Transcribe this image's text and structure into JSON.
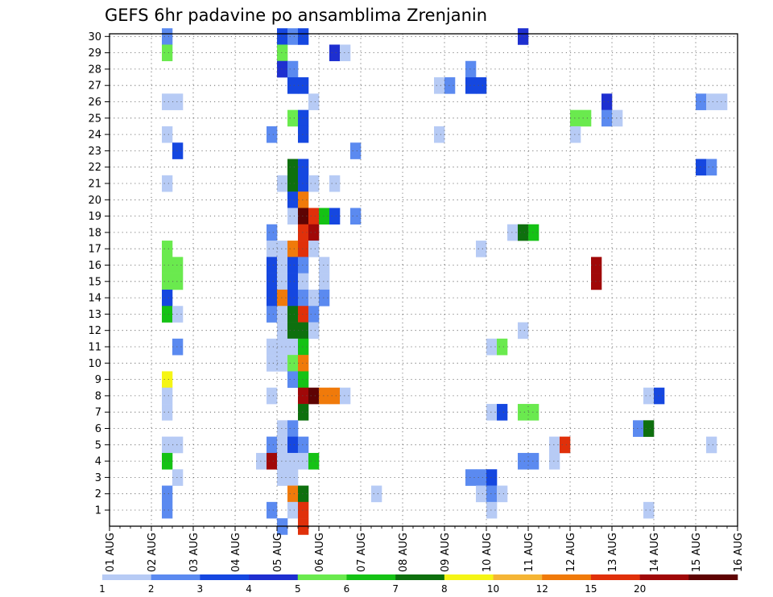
{
  "chart_data": {
    "type": "heatmap",
    "title": "GEFS 6hr padavine po ansamblima Zrenjanin",
    "xlabel": "",
    "ylabel": "",
    "x_ticks": [
      "01 AUG",
      "02 AUG",
      "03 AUG",
      "04 AUG",
      "05 AUG",
      "06 AUG",
      "07 AUG",
      "08 AUG",
      "09 AUG",
      "10 AUG",
      "11 AUG",
      "12 AUG",
      "13 AUG",
      "14 AUG",
      "15 AUG",
      "16 AUG"
    ],
    "y_ticks": [
      "1",
      "2",
      "3",
      "4",
      "5",
      "6",
      "7",
      "8",
      "9",
      "10",
      "11",
      "12",
      "13",
      "14",
      "15",
      "16",
      "17",
      "18",
      "19",
      "20",
      "21",
      "22",
      "23",
      "24",
      "25",
      "26",
      "27",
      "28",
      "29",
      "30"
    ],
    "x_unit": "6-hour steps from 01 AUG 00z",
    "grid": true,
    "levels": [
      1,
      2,
      3,
      4,
      5,
      6,
      7,
      8,
      10,
      12,
      15,
      20
    ],
    "level_colors": [
      "#b7cbf5",
      "#5b8af0",
      "#1547e0",
      "#1e2fd0",
      "#6aea4e",
      "#15c215",
      "#0e700e",
      "#f5f515",
      "#f5b535",
      "#f07a0a",
      "#e0300a",
      "#a00808",
      "#5e0303"
    ],
    "colorbar_labels": [
      "1",
      "2",
      "3",
      "4",
      "5",
      "6",
      "7",
      "8",
      "10",
      "12",
      "15",
      "20"
    ],
    "colorbar_position": "bottom",
    "cells": [
      {
        "x": 5,
        "y": 30,
        "c": 1
      },
      {
        "x": 16,
        "y": 30,
        "c": 2
      },
      {
        "x": 17,
        "y": 30,
        "c": 1
      },
      {
        "x": 18,
        "y": 30,
        "c": 2
      },
      {
        "x": 39,
        "y": 30,
        "c": 3
      },
      {
        "x": 5,
        "y": 29,
        "c": 4
      },
      {
        "x": 16,
        "y": 29,
        "c": 4
      },
      {
        "x": 21,
        "y": 29,
        "c": 3
      },
      {
        "x": 22,
        "y": 29,
        "c": 0
      },
      {
        "x": 16,
        "y": 28,
        "c": 3
      },
      {
        "x": 17,
        "y": 28,
        "c": 1
      },
      {
        "x": 34,
        "y": 28,
        "c": 1
      },
      {
        "x": 17,
        "y": 27,
        "c": 2
      },
      {
        "x": 18,
        "y": 27,
        "c": 2
      },
      {
        "x": 31,
        "y": 27,
        "c": 0
      },
      {
        "x": 32,
        "y": 27,
        "c": 1
      },
      {
        "x": 34,
        "y": 27,
        "c": 2
      },
      {
        "x": 35,
        "y": 27,
        "c": 2
      },
      {
        "x": 5,
        "y": 26,
        "c": 0
      },
      {
        "x": 6,
        "y": 26,
        "c": 0
      },
      {
        "x": 19,
        "y": 26,
        "c": 0
      },
      {
        "x": 47,
        "y": 26,
        "c": 3
      },
      {
        "x": 56,
        "y": 26,
        "c": 1
      },
      {
        "x": 57,
        "y": 26,
        "c": 0
      },
      {
        "x": 58,
        "y": 26,
        "c": 0
      },
      {
        "x": 17,
        "y": 25,
        "c": 4
      },
      {
        "x": 18,
        "y": 25,
        "c": 2
      },
      {
        "x": 44,
        "y": 25,
        "c": 4
      },
      {
        "x": 45,
        "y": 25,
        "c": 4
      },
      {
        "x": 47,
        "y": 25,
        "c": 1
      },
      {
        "x": 48,
        "y": 25,
        "c": 0
      },
      {
        "x": 5,
        "y": 24,
        "c": 0
      },
      {
        "x": 15,
        "y": 24,
        "c": 1
      },
      {
        "x": 18,
        "y": 24,
        "c": 2
      },
      {
        "x": 31,
        "y": 24,
        "c": 0
      },
      {
        "x": 44,
        "y": 24,
        "c": 0
      },
      {
        "x": 6,
        "y": 23,
        "c": 2
      },
      {
        "x": 23,
        "y": 23,
        "c": 1
      },
      {
        "x": 17,
        "y": 22,
        "c": 6
      },
      {
        "x": 18,
        "y": 22,
        "c": 2
      },
      {
        "x": 56,
        "y": 22,
        "c": 2
      },
      {
        "x": 57,
        "y": 22,
        "c": 1
      },
      {
        "x": 5,
        "y": 21,
        "c": 0
      },
      {
        "x": 16,
        "y": 21,
        "c": 0
      },
      {
        "x": 17,
        "y": 21,
        "c": 6
      },
      {
        "x": 18,
        "y": 21,
        "c": 2
      },
      {
        "x": 19,
        "y": 21,
        "c": 0
      },
      {
        "x": 21,
        "y": 21,
        "c": 0
      },
      {
        "x": 17,
        "y": 20,
        "c": 2
      },
      {
        "x": 18,
        "y": 20,
        "c": 9
      },
      {
        "x": 17,
        "y": 19,
        "c": 0
      },
      {
        "x": 18,
        "y": 19,
        "c": 12
      },
      {
        "x": 19,
        "y": 19,
        "c": 10
      },
      {
        "x": 20,
        "y": 19,
        "c": 5
      },
      {
        "x": 21,
        "y": 19,
        "c": 2
      },
      {
        "x": 23,
        "y": 19,
        "c": 1
      },
      {
        "x": 15,
        "y": 18,
        "c": 1
      },
      {
        "x": 18,
        "y": 18,
        "c": 10
      },
      {
        "x": 19,
        "y": 18,
        "c": 11
      },
      {
        "x": 38,
        "y": 18,
        "c": 0
      },
      {
        "x": 39,
        "y": 18,
        "c": 6
      },
      {
        "x": 40,
        "y": 18,
        "c": 5
      },
      {
        "x": 5,
        "y": 17,
        "c": 4
      },
      {
        "x": 15,
        "y": 17,
        "c": 0
      },
      {
        "x": 16,
        "y": 17,
        "c": 0
      },
      {
        "x": 17,
        "y": 17,
        "c": 9
      },
      {
        "x": 18,
        "y": 17,
        "c": 10
      },
      {
        "x": 19,
        "y": 17,
        "c": 0
      },
      {
        "x": 35,
        "y": 17,
        "c": 0
      },
      {
        "x": 5,
        "y": 16,
        "c": 4
      },
      {
        "x": 6,
        "y": 16,
        "c": 4
      },
      {
        "x": 15,
        "y": 16,
        "c": 2
      },
      {
        "x": 16,
        "y": 16,
        "c": 0
      },
      {
        "x": 17,
        "y": 16,
        "c": 2
      },
      {
        "x": 18,
        "y": 16,
        "c": 1
      },
      {
        "x": 20,
        "y": 16,
        "c": 0
      },
      {
        "x": 46,
        "y": 16,
        "c": 11
      },
      {
        "x": 5,
        "y": 15,
        "c": 4
      },
      {
        "x": 6,
        "y": 15,
        "c": 4
      },
      {
        "x": 15,
        "y": 15,
        "c": 2
      },
      {
        "x": 16,
        "y": 15,
        "c": 0
      },
      {
        "x": 17,
        "y": 15,
        "c": 2
      },
      {
        "x": 18,
        "y": 15,
        "c": 0
      },
      {
        "x": 20,
        "y": 15,
        "c": 0
      },
      {
        "x": 46,
        "y": 15,
        "c": 11
      },
      {
        "x": 5,
        "y": 14,
        "c": 2
      },
      {
        "x": 15,
        "y": 14,
        "c": 2
      },
      {
        "x": 16,
        "y": 14,
        "c": 9
      },
      {
        "x": 17,
        "y": 14,
        "c": 2
      },
      {
        "x": 18,
        "y": 14,
        "c": 1
      },
      {
        "x": 19,
        "y": 14,
        "c": 0
      },
      {
        "x": 20,
        "y": 14,
        "c": 1
      },
      {
        "x": 5,
        "y": 13,
        "c": 5
      },
      {
        "x": 6,
        "y": 13,
        "c": 0
      },
      {
        "x": 15,
        "y": 13,
        "c": 1
      },
      {
        "x": 16,
        "y": 13,
        "c": 0
      },
      {
        "x": 17,
        "y": 13,
        "c": 6
      },
      {
        "x": 18,
        "y": 13,
        "c": 10
      },
      {
        "x": 19,
        "y": 13,
        "c": 1
      },
      {
        "x": 16,
        "y": 12,
        "c": 0
      },
      {
        "x": 17,
        "y": 12,
        "c": 6
      },
      {
        "x": 18,
        "y": 12,
        "c": 6
      },
      {
        "x": 19,
        "y": 12,
        "c": 0
      },
      {
        "x": 39,
        "y": 12,
        "c": 0
      },
      {
        "x": 6,
        "y": 11,
        "c": 1
      },
      {
        "x": 15,
        "y": 11,
        "c": 0
      },
      {
        "x": 16,
        "y": 11,
        "c": 0
      },
      {
        "x": 17,
        "y": 11,
        "c": 0
      },
      {
        "x": 18,
        "y": 11,
        "c": 5
      },
      {
        "x": 36,
        "y": 11,
        "c": 0
      },
      {
        "x": 37,
        "y": 11,
        "c": 4
      },
      {
        "x": 15,
        "y": 10,
        "c": 0
      },
      {
        "x": 16,
        "y": 10,
        "c": 0
      },
      {
        "x": 17,
        "y": 10,
        "c": 4
      },
      {
        "x": 18,
        "y": 10,
        "c": 9
      },
      {
        "x": 5,
        "y": 9,
        "c": 7
      },
      {
        "x": 17,
        "y": 9,
        "c": 1
      },
      {
        "x": 18,
        "y": 9,
        "c": 5
      },
      {
        "x": 5,
        "y": 8,
        "c": 0
      },
      {
        "x": 15,
        "y": 8,
        "c": 0
      },
      {
        "x": 18,
        "y": 8,
        "c": 11
      },
      {
        "x": 19,
        "y": 8,
        "c": 12
      },
      {
        "x": 20,
        "y": 8,
        "c": 9
      },
      {
        "x": 21,
        "y": 8,
        "c": 9
      },
      {
        "x": 22,
        "y": 8,
        "c": 0
      },
      {
        "x": 51,
        "y": 8,
        "c": 0
      },
      {
        "x": 52,
        "y": 8,
        "c": 2
      },
      {
        "x": 5,
        "y": 7,
        "c": 0
      },
      {
        "x": 18,
        "y": 7,
        "c": 6
      },
      {
        "x": 36,
        "y": 7,
        "c": 0
      },
      {
        "x": 37,
        "y": 7,
        "c": 2
      },
      {
        "x": 39,
        "y": 7,
        "c": 4
      },
      {
        "x": 40,
        "y": 7,
        "c": 4
      },
      {
        "x": 16,
        "y": 6,
        "c": 0
      },
      {
        "x": 17,
        "y": 6,
        "c": 1
      },
      {
        "x": 50,
        "y": 6,
        "c": 1
      },
      {
        "x": 51,
        "y": 6,
        "c": 6
      },
      {
        "x": 5,
        "y": 5,
        "c": 0
      },
      {
        "x": 6,
        "y": 5,
        "c": 0
      },
      {
        "x": 15,
        "y": 5,
        "c": 1
      },
      {
        "x": 16,
        "y": 5,
        "c": 0
      },
      {
        "x": 17,
        "y": 5,
        "c": 2
      },
      {
        "x": 18,
        "y": 5,
        "c": 1
      },
      {
        "x": 42,
        "y": 5,
        "c": 0
      },
      {
        "x": 43,
        "y": 5,
        "c": 10
      },
      {
        "x": 57,
        "y": 5,
        "c": 0
      },
      {
        "x": 5,
        "y": 4,
        "c": 5
      },
      {
        "x": 14,
        "y": 4,
        "c": 0
      },
      {
        "x": 15,
        "y": 4,
        "c": 11
      },
      {
        "x": 16,
        "y": 4,
        "c": 0
      },
      {
        "x": 17,
        "y": 4,
        "c": 0
      },
      {
        "x": 18,
        "y": 4,
        "c": 0
      },
      {
        "x": 19,
        "y": 4,
        "c": 5
      },
      {
        "x": 39,
        "y": 4,
        "c": 1
      },
      {
        "x": 40,
        "y": 4,
        "c": 1
      },
      {
        "x": 42,
        "y": 4,
        "c": 0
      },
      {
        "x": 6,
        "y": 3,
        "c": 0
      },
      {
        "x": 16,
        "y": 3,
        "c": 0
      },
      {
        "x": 17,
        "y": 3,
        "c": 0
      },
      {
        "x": 34,
        "y": 3,
        "c": 1
      },
      {
        "x": 35,
        "y": 3,
        "c": 1
      },
      {
        "x": 36,
        "y": 3,
        "c": 2
      },
      {
        "x": 5,
        "y": 2,
        "c": 1
      },
      {
        "x": 17,
        "y": 2,
        "c": 9
      },
      {
        "x": 18,
        "y": 2,
        "c": 6
      },
      {
        "x": 25,
        "y": 2,
        "c": 0
      },
      {
        "x": 35,
        "y": 2,
        "c": 0
      },
      {
        "x": 36,
        "y": 2,
        "c": 1
      },
      {
        "x": 37,
        "y": 2,
        "c": 0
      },
      {
        "x": 5,
        "y": 1,
        "c": 1
      },
      {
        "x": 15,
        "y": 1,
        "c": 1
      },
      {
        "x": 17,
        "y": 1,
        "c": 0
      },
      {
        "x": 18,
        "y": 1,
        "c": 10
      },
      {
        "x": 36,
        "y": 1,
        "c": 0
      },
      {
        "x": 51,
        "y": 1,
        "c": 0
      },
      {
        "x": 16,
        "y": 0,
        "c": 1
      },
      {
        "x": 18,
        "y": 0,
        "c": 10
      }
    ]
  }
}
